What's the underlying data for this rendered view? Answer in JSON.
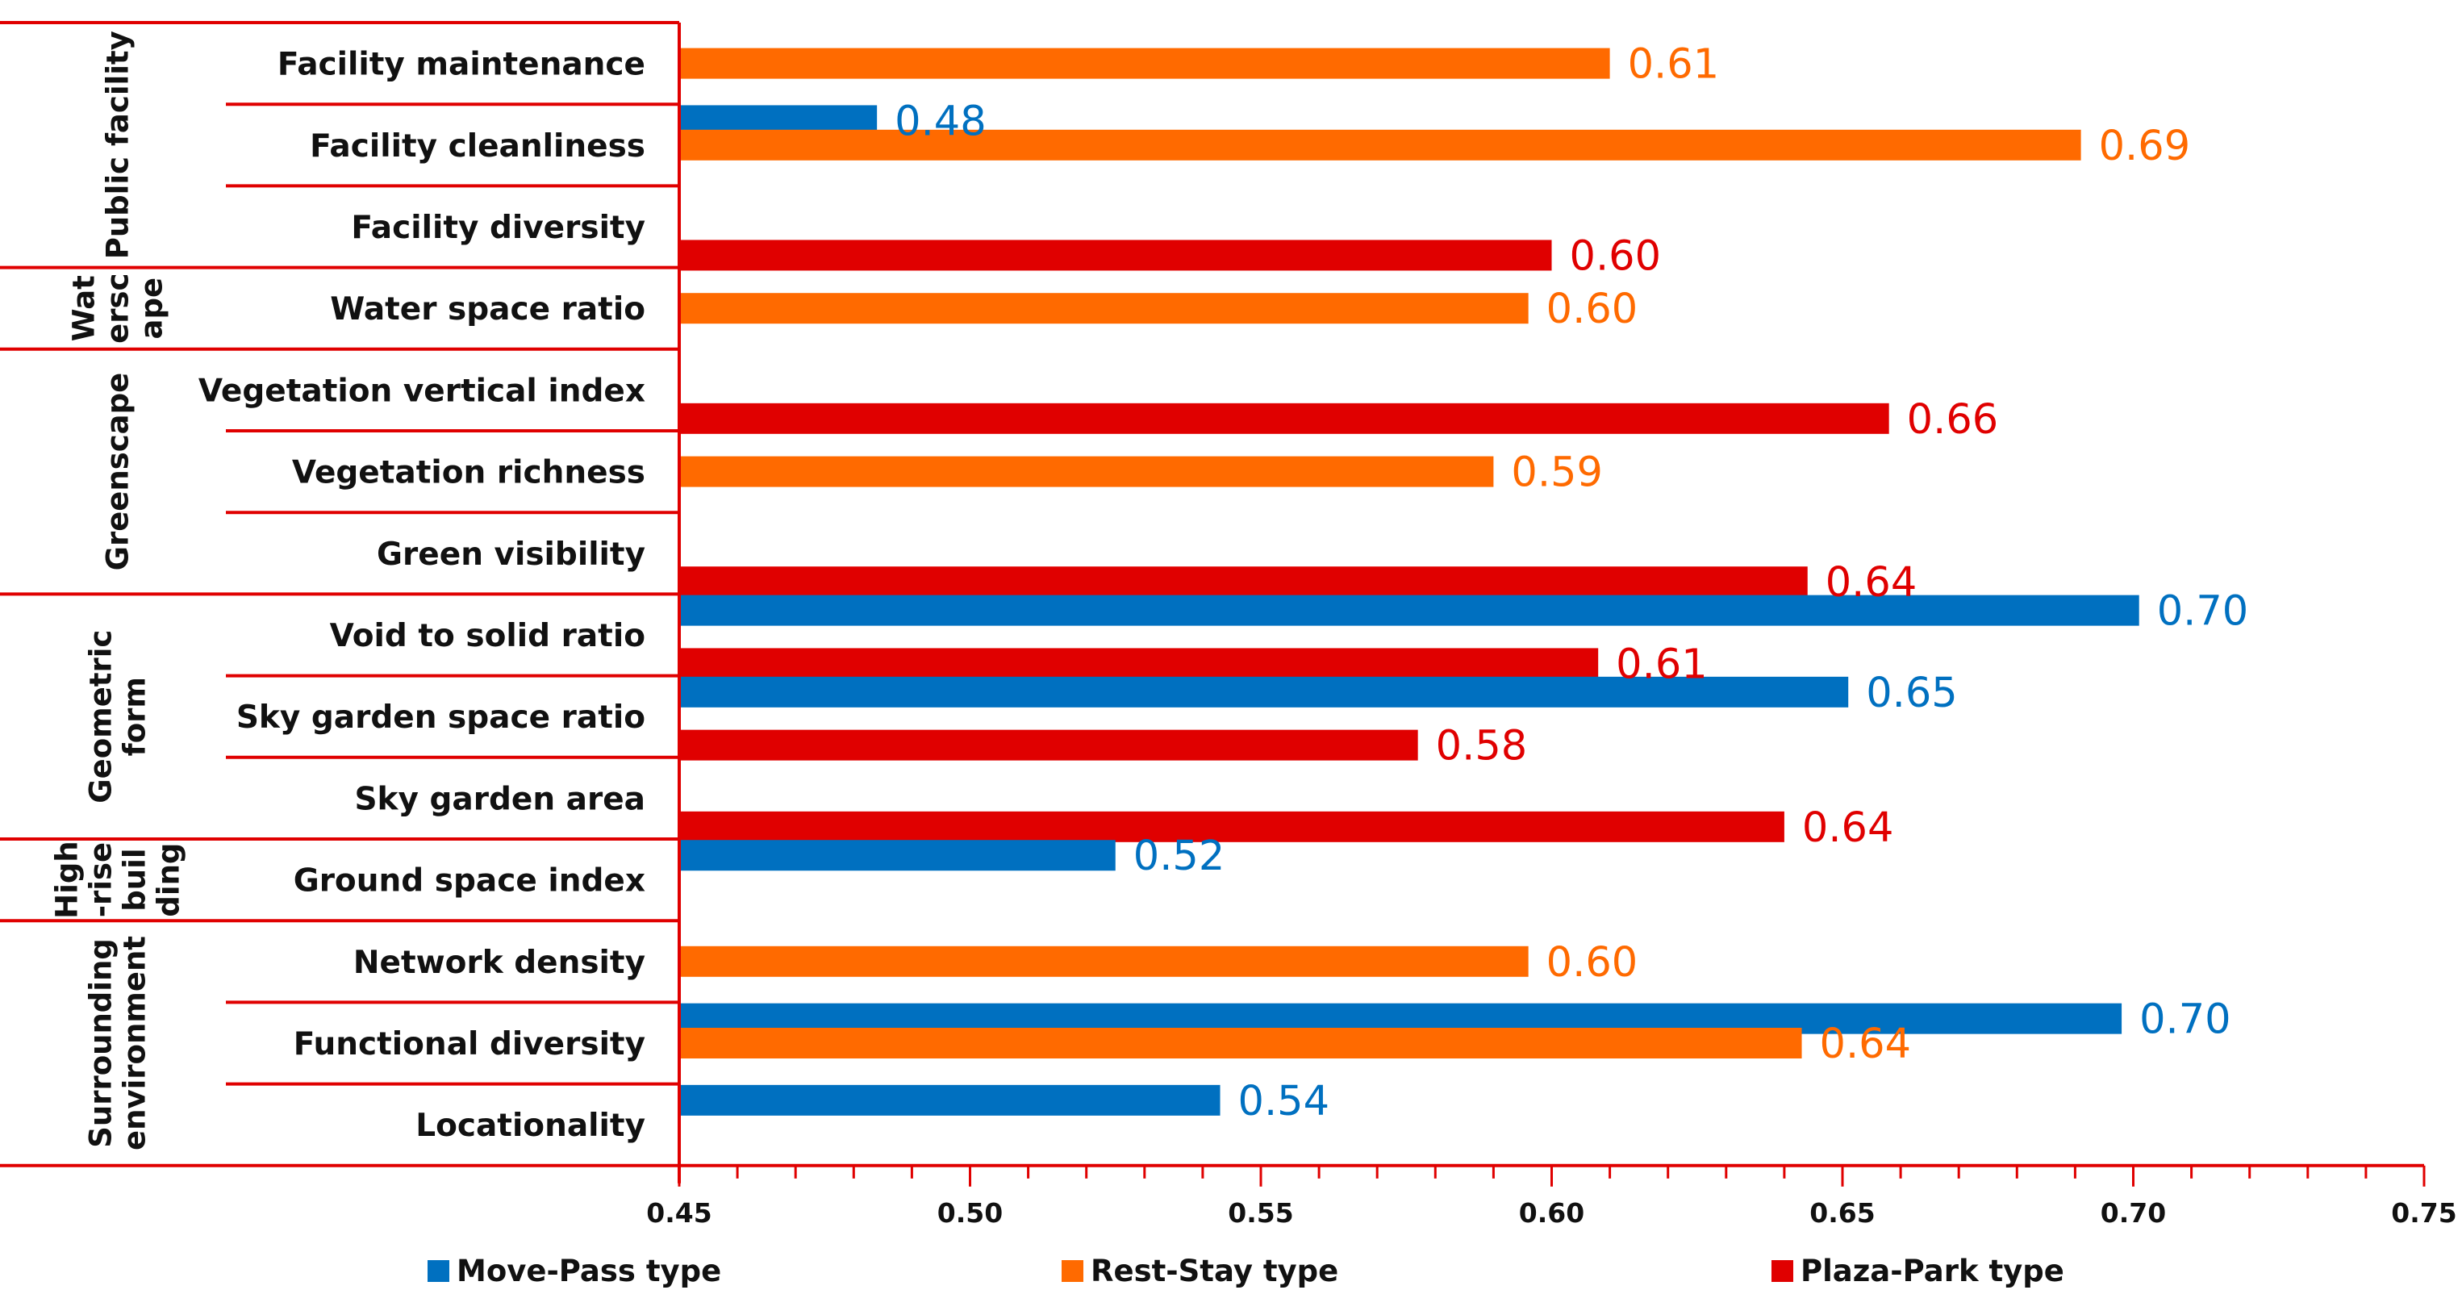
{
  "chart_data": {
    "type": "bar",
    "orientation": "horizontal",
    "xlim": [
      0.45,
      0.75
    ],
    "x_ticks": [
      "0.45",
      "0.50",
      "0.55",
      "0.60",
      "0.65",
      "0.70",
      "0.75"
    ],
    "colors": {
      "Move-Pass type": "#0070C0",
      "Rest-Stay type": "#FF6A00",
      "Plaza-Park type": "#E00000",
      "axis": "#E00000"
    },
    "legend": [
      "Move-Pass type",
      "Rest-Stay type",
      "Plaza-Park type"
    ],
    "groups": [
      {
        "lines": [
          "Public facility"
        ],
        "categories": [
          "Facility maintenance",
          "Facility cleanliness",
          "Facility diversity"
        ]
      },
      {
        "lines": [
          "Wat",
          "ersc",
          "ape"
        ],
        "categories": [
          "Water space ratio"
        ]
      },
      {
        "lines": [
          "Greenscape"
        ],
        "categories": [
          "Vegetation vertical index",
          "Vegetation richness",
          "Green visibility"
        ]
      },
      {
        "lines": [
          "Geometric",
          "form"
        ],
        "categories": [
          "Void to solid ratio",
          "Sky garden space ratio",
          "Sky garden area"
        ]
      },
      {
        "lines": [
          "High",
          "-rise",
          "buil",
          "ding"
        ],
        "categories": [
          "Ground space index"
        ]
      },
      {
        "lines": [
          "Surrounding",
          "environment"
        ],
        "categories": [
          "Network density",
          "Functional diversity",
          "Locationality"
        ]
      }
    ],
    "bars": [
      {
        "series": "Rest-Stay type",
        "row": 0,
        "pos": 0.5,
        "value": 0.61,
        "label": "0.61"
      },
      {
        "series": "Move-Pass type",
        "row": 1,
        "pos": 0.2,
        "value": 0.484,
        "label": "0.48"
      },
      {
        "series": "Rest-Stay type",
        "row": 1,
        "pos": 0.5,
        "value": 0.691,
        "label": "0.69"
      },
      {
        "series": "Plaza-Park type",
        "row": 2,
        "pos": 0.85,
        "value": 0.6,
        "label": "0.60"
      },
      {
        "series": "Rest-Stay type",
        "row": 3,
        "pos": 0.5,
        "value": 0.596,
        "label": "0.60"
      },
      {
        "series": "Plaza-Park type",
        "row": 4,
        "pos": 0.85,
        "value": 0.658,
        "label": "0.66"
      },
      {
        "series": "Rest-Stay type",
        "row": 5,
        "pos": 0.5,
        "value": 0.59,
        "label": "0.59"
      },
      {
        "series": "Plaza-Park type",
        "row": 6,
        "pos": 0.85,
        "value": 0.644,
        "label": "0.64"
      },
      {
        "series": "Move-Pass type",
        "row": 7,
        "pos": 0.2,
        "value": 0.701,
        "label": "0.70"
      },
      {
        "series": "Plaza-Park type",
        "row": 7,
        "pos": 0.85,
        "value": 0.608,
        "label": "0.61"
      },
      {
        "series": "Move-Pass type",
        "row": 8,
        "pos": 0.2,
        "value": 0.651,
        "label": "0.65"
      },
      {
        "series": "Plaza-Park type",
        "row": 8,
        "pos": 0.85,
        "value": 0.577,
        "label": "0.58"
      },
      {
        "series": "Plaza-Park type",
        "row": 9,
        "pos": 0.85,
        "value": 0.64,
        "label": "0.64"
      },
      {
        "series": "Move-Pass type",
        "row": 10,
        "pos": 0.2,
        "value": 0.525,
        "label": "0.52"
      },
      {
        "series": "Rest-Stay type",
        "row": 11,
        "pos": 0.5,
        "value": 0.596,
        "label": "0.60"
      },
      {
        "series": "Move-Pass type",
        "row": 12,
        "pos": 0.2,
        "value": 0.698,
        "label": "0.70"
      },
      {
        "series": "Rest-Stay type",
        "row": 12,
        "pos": 0.5,
        "value": 0.643,
        "label": "0.64"
      },
      {
        "series": "Move-Pass type",
        "row": 13,
        "pos": 0.2,
        "value": 0.543,
        "label": "0.54"
      }
    ]
  }
}
